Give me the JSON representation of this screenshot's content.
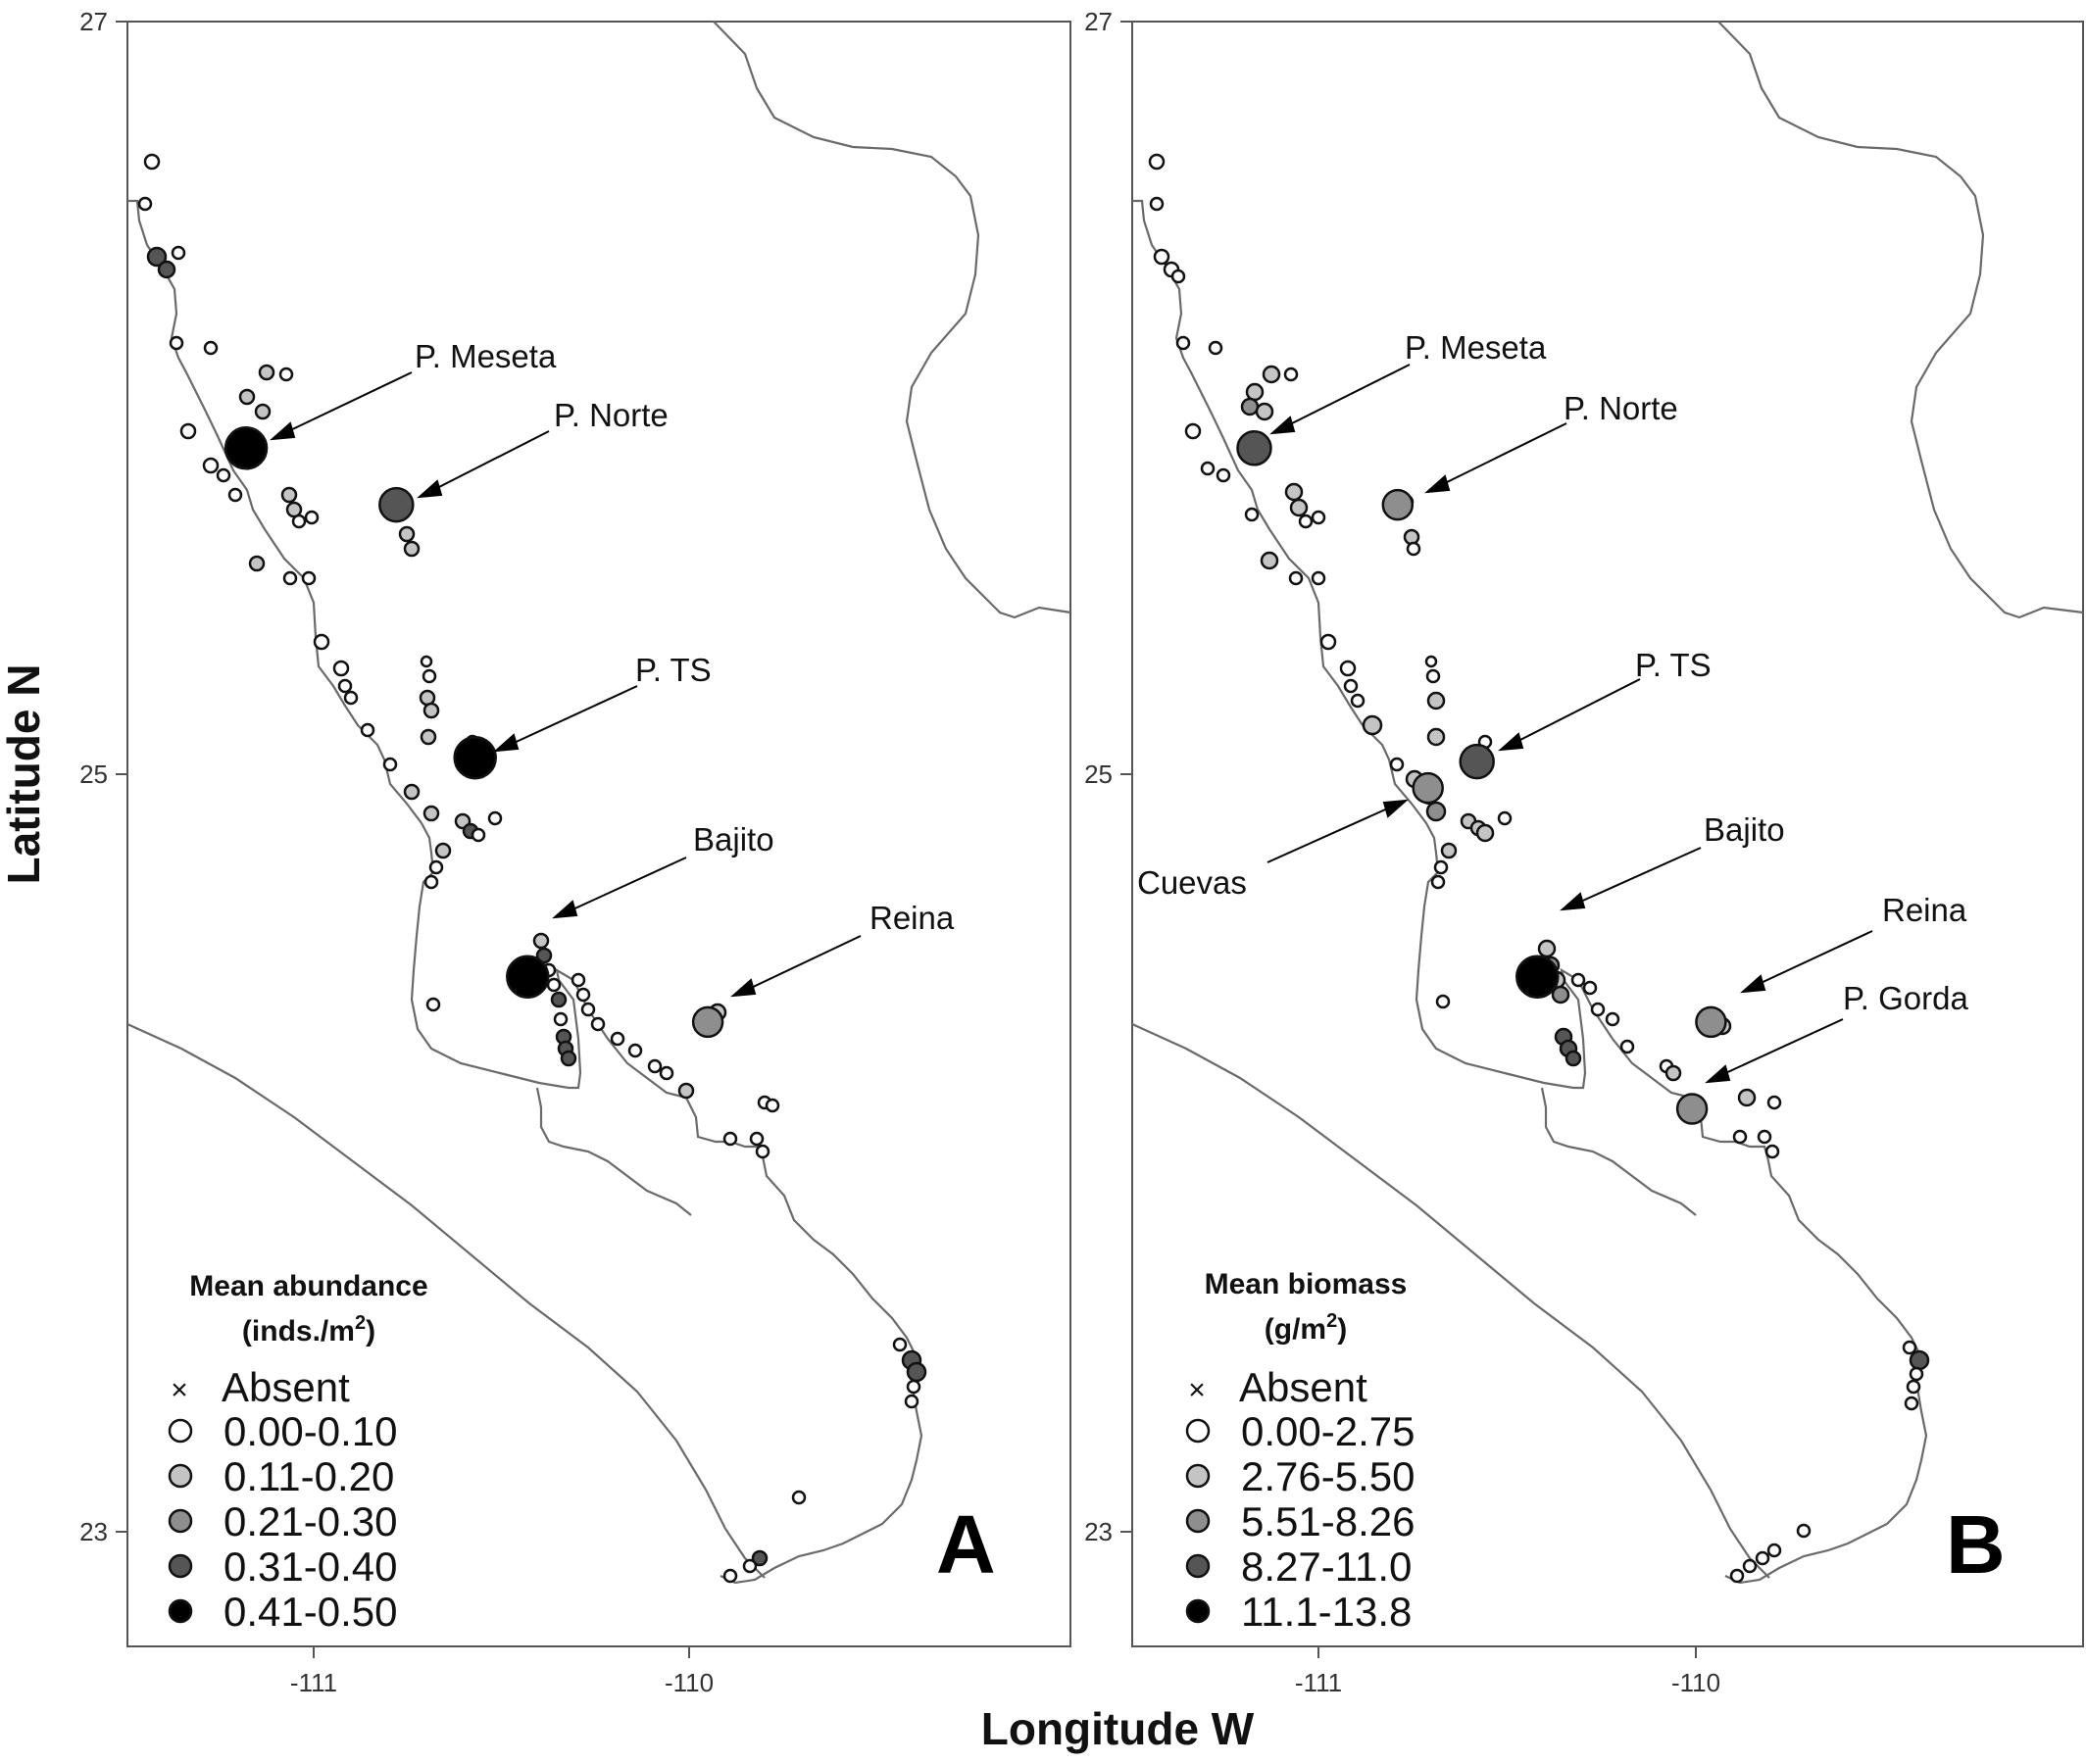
{
  "axes": {
    "xlabel": "Longitude W",
    "ylabel": "Latitude N",
    "y_ticks": [
      "27",
      "25",
      "23"
    ],
    "x_ticks": [
      "-111",
      "-110"
    ]
  },
  "panels": [
    {
      "letter": "A",
      "legend_title_line1": "Mean abundance",
      "legend_title_line2": "(inds./m",
      "legend_title_sup": "2",
      "legend_title_end": ")",
      "legend_items": [
        "Absent",
        "0.00-0.10",
        "0.11-0.20",
        "0.21-0.30",
        "0.31-0.40",
        "0.41-0.50"
      ],
      "site_labels": [
        "P. Meseta",
        "P. Norte",
        "P. TS",
        "Bajito",
        "Reina"
      ]
    },
    {
      "letter": "B",
      "legend_title_line1": "Mean biomass",
      "legend_title_line2": "(g/m",
      "legend_title_sup": "2",
      "legend_title_end": ")",
      "legend_items": [
        "Absent",
        "0.00-2.75",
        "2.76-5.50",
        "5.51-8.26",
        "8.27-11.0",
        "11.1-13.8"
      ],
      "site_labels": [
        "P. Meseta",
        "P. Norte",
        "P. TS",
        "Cuevas",
        "Bajito",
        "Reina",
        "P. Gorda"
      ]
    }
  ],
  "class_colors": [
    "#ffffff",
    "#c4c4c4",
    "#8e8e8e",
    "#555555",
    "#000000"
  ],
  "chart_data": {
    "type": "scatter",
    "xlim": [
      -111.5,
      -109.0
    ],
    "ylim": [
      22.7,
      27
    ],
    "highlighted_sites": {
      "A": [
        {
          "name": "P. Meseta",
          "lon": -111.18,
          "lat": 25.87,
          "class": 4
        },
        {
          "name": "P. Norte",
          "lon": -110.78,
          "lat": 25.72,
          "class": 3
        },
        {
          "name": "P. TS",
          "lon": -110.57,
          "lat": 25.05,
          "class": 4
        },
        {
          "name": "Bajito",
          "lon": -110.43,
          "lat": 24.47,
          "class": 4
        },
        {
          "name": "Reina",
          "lon": -109.95,
          "lat": 24.35,
          "class": 2
        }
      ],
      "B": [
        {
          "name": "P. Meseta",
          "lon": -111.17,
          "lat": 25.87,
          "class": 3
        },
        {
          "name": "P. Norte",
          "lon": -110.79,
          "lat": 25.72,
          "class": 2
        },
        {
          "name": "P. TS",
          "lon": -110.58,
          "lat": 25.04,
          "class": 3
        },
        {
          "name": "Cuevas",
          "lon": -110.71,
          "lat": 24.97,
          "class": 2
        },
        {
          "name": "Bajito",
          "lon": -110.42,
          "lat": 24.47,
          "class": 4
        },
        {
          "name": "Reina",
          "lon": -109.96,
          "lat": 24.35,
          "class": 2
        },
        {
          "name": "P. Gorda",
          "lon": -110.01,
          "lat": 24.12,
          "class": 2
        }
      ]
    }
  }
}
